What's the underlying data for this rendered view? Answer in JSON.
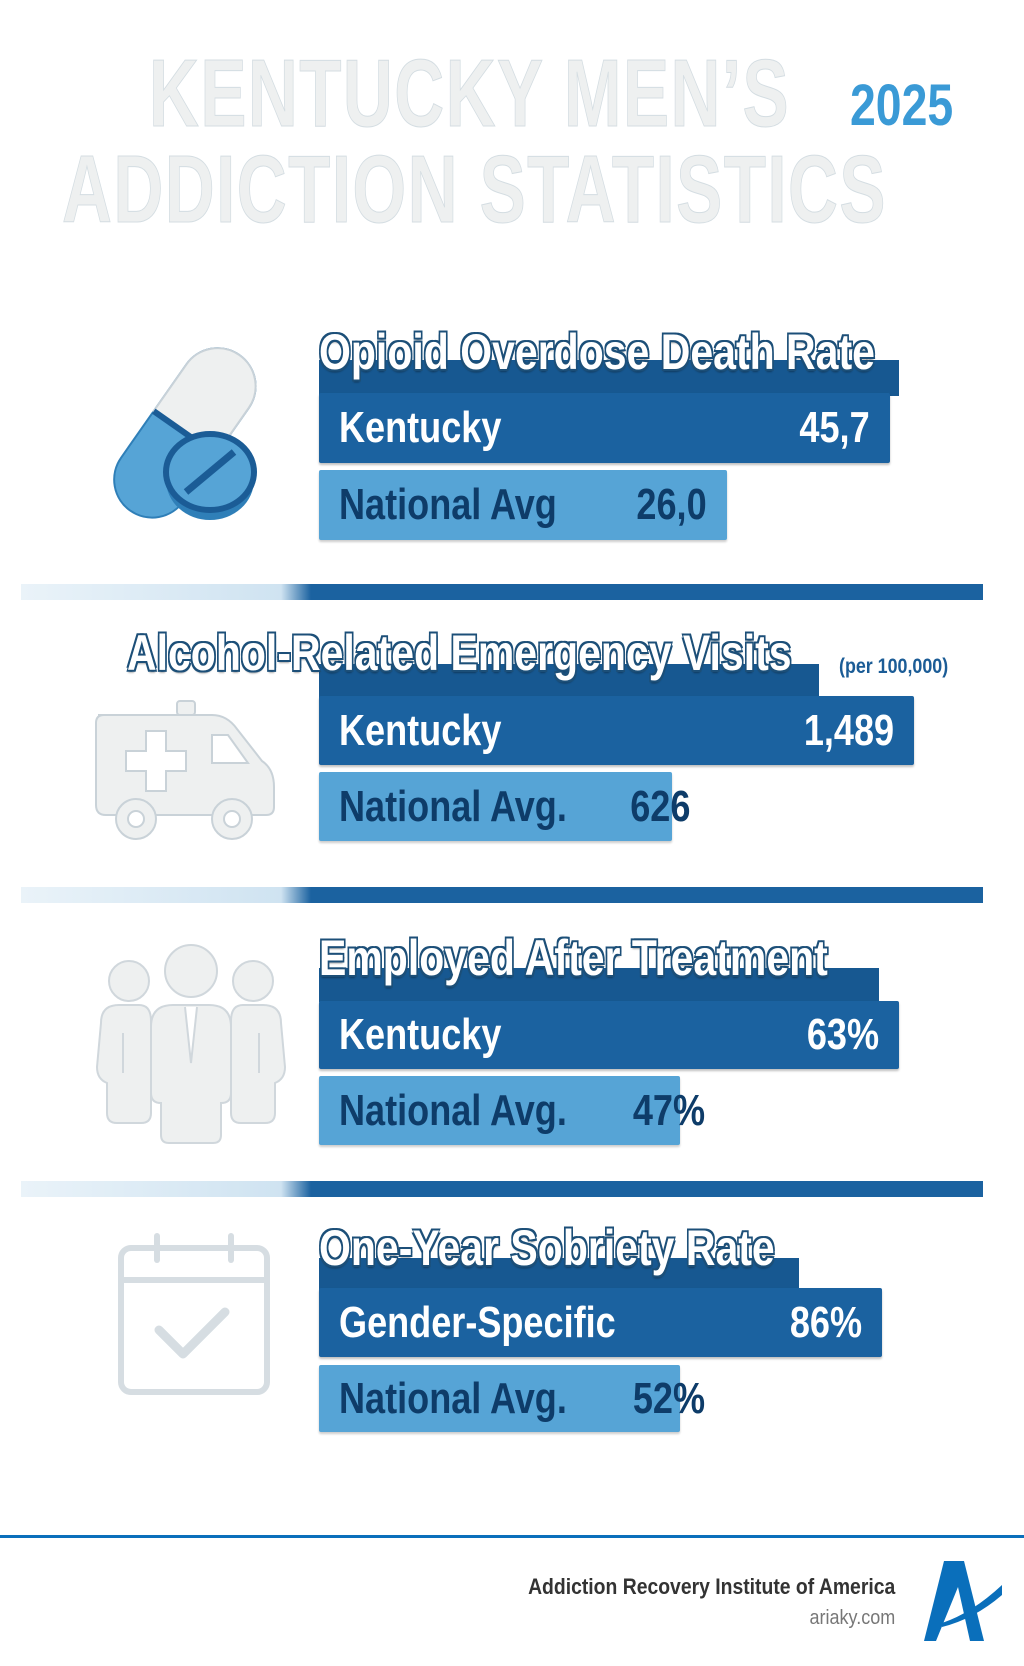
{
  "header": {
    "title_line1": "KENTUCKY MEN’S",
    "title_line2": "ADDICTION STATISTICS",
    "year": "2025"
  },
  "sections": [
    {
      "title": "Opioid Overdose Death Rate",
      "icon": "pill-icon",
      "unit": "",
      "rows": [
        {
          "label": "Kentucky",
          "value": "45,7"
        },
        {
          "label": "National Avg",
          "value": "26,0"
        }
      ]
    },
    {
      "title": "Alcohol-Related Emergency Visits",
      "icon": "ambulance-icon",
      "unit": "(per 100,000)",
      "rows": [
        {
          "label": "Kentucky",
          "value": "1,489"
        },
        {
          "label": "National Avg.",
          "value": "626"
        }
      ]
    },
    {
      "title": "Employed After Treatment",
      "icon": "people-icon",
      "unit": "",
      "rows": [
        {
          "label": "Kentucky",
          "value": "63%"
        },
        {
          "label": "National Avg.",
          "value": "47%"
        }
      ]
    },
    {
      "title": "One-Year Sobriety Rate",
      "icon": "calendar-check-icon",
      "unit": "",
      "rows": [
        {
          "label": "Gender-Specific",
          "value": "86%"
        },
        {
          "label": "National Avg.",
          "value": "52%"
        }
      ]
    }
  ],
  "footer": {
    "organization": "Addiction Recovery Institute of America",
    "website": "ariaky.com"
  },
  "colors": {
    "dark_bar": "#1b62a0",
    "light_bar": "#56a4d6",
    "accent": "#3a9ad6",
    "footer_line": "#0a6fbb"
  }
}
